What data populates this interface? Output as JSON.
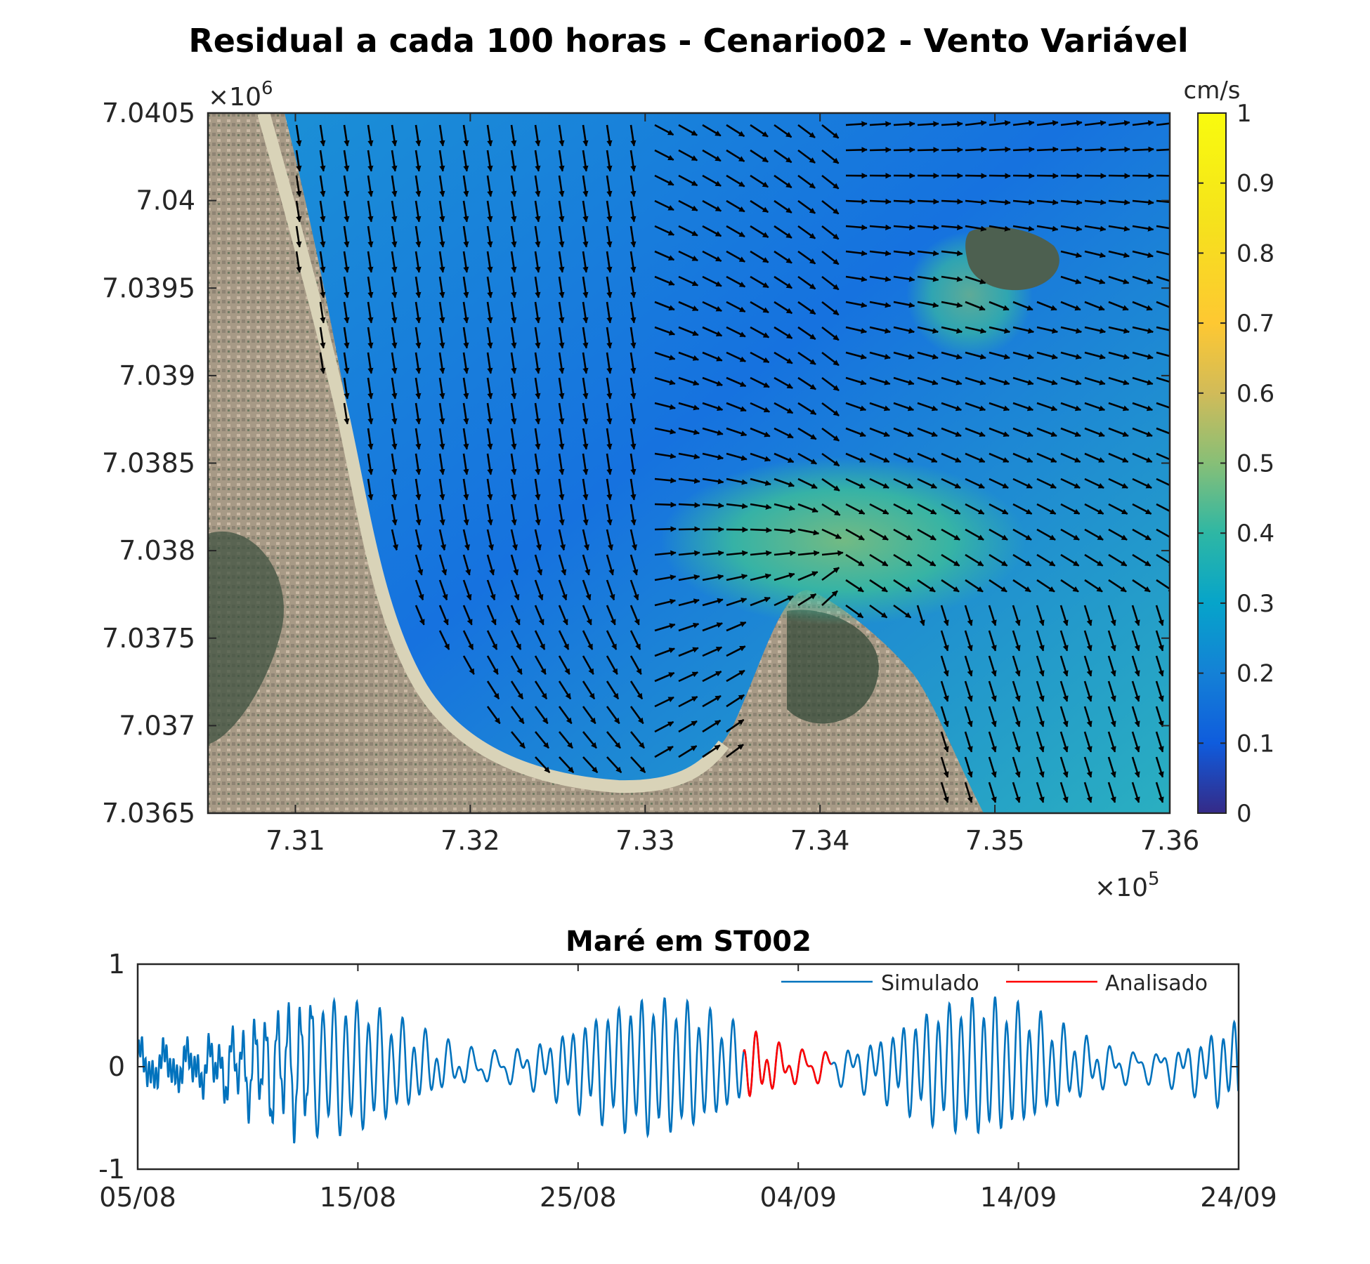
{
  "chart_data": [
    {
      "type": "heatmap",
      "title": "Residual a cada 100 horas  - Cenario02 - Vento Variável",
      "xlabel": "",
      "ylabel": "",
      "x_exponent_label": "×10",
      "x_exponent": "5",
      "y_exponent_label": "×10",
      "y_exponent": "6",
      "xlim": [
        730500,
        736000
      ],
      "ylim": [
        7036500,
        7040500
      ],
      "x_ticks": [
        731000,
        732000,
        733000,
        734000,
        735000,
        736000
      ],
      "x_tick_labels": [
        "7.31",
        "7.32",
        "7.33",
        "7.34",
        "7.35",
        "7.36"
      ],
      "y_ticks": [
        7036500,
        7037000,
        7037500,
        7038000,
        7038500,
        7039000,
        7039500,
        7040000,
        7040500
      ],
      "y_tick_labels": [
        "7.0365",
        "7.037",
        "7.0375",
        "7.038",
        "7.0385",
        "7.039",
        "7.0395",
        "7.04",
        "7.0405"
      ],
      "background": "satellite image of coastline (land masked)",
      "field": "residual current speed with velocity vectors (quiver, black arrows)",
      "colorbar": {
        "label": "cm/s",
        "range": [
          0,
          1
        ],
        "ticks": [
          0,
          0.1,
          0.2,
          0.3,
          0.4,
          0.5,
          0.6,
          0.7,
          0.8,
          0.9,
          1
        ],
        "tick_labels": [
          "0",
          "0.1",
          "0.2",
          "0.3",
          "0.4",
          "0.5",
          "0.6",
          "0.7",
          "0.8",
          "0.9",
          "1"
        ],
        "colormap": "parula"
      }
    },
    {
      "type": "line",
      "title": "Maré em ST002",
      "xlabel": "",
      "ylabel": "",
      "x_tick_labels": [
        "05/08",
        "15/08",
        "25/08",
        "04/09",
        "14/09",
        "24/09"
      ],
      "x_tick_days": [
        0,
        10,
        20,
        30,
        40,
        50
      ],
      "ylim": [
        -1,
        1
      ],
      "y_ticks": [
        -1,
        0,
        1
      ],
      "y_tick_labels": [
        "-1",
        "0",
        "1"
      ],
      "legend_position": "top-right",
      "series": [
        {
          "name": "Simulado",
          "color": "#0072BD",
          "description": "full record 05/08 to 24/09, semi-diurnal tide with spring-neap modulation, amplitude up to ~0.6"
        },
        {
          "name": "Analisado",
          "color": "#FF0000",
          "description": "highlighted segment roughly 02/09 to 06/09"
        }
      ]
    }
  ]
}
